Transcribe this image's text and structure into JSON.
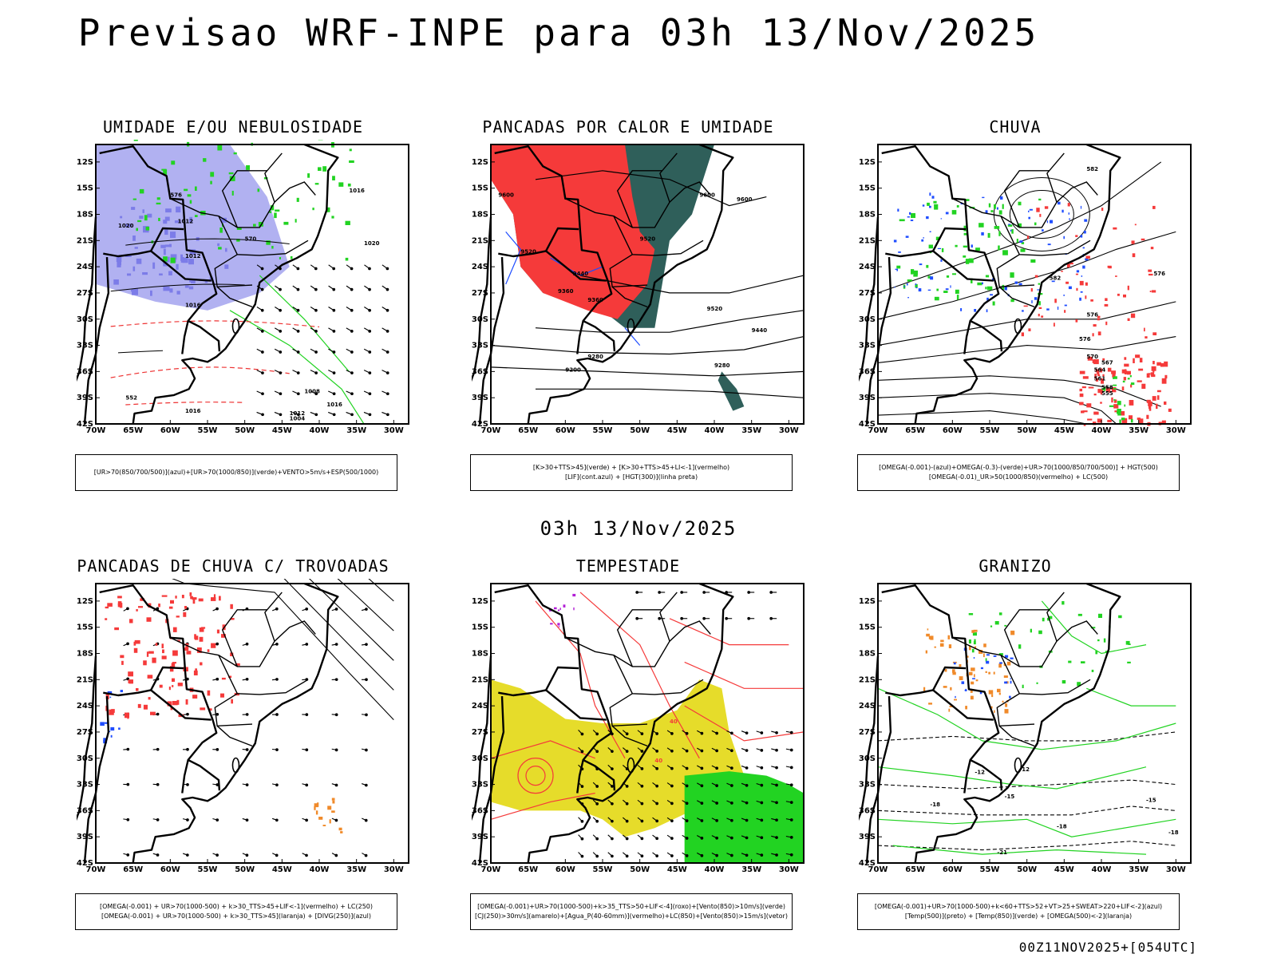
{
  "header": {
    "title": "Previsao WRF-INPE  para 03h 13/Nov/2025",
    "mid_time": "03h 13/Nov/2025",
    "run_stamp": "00Z11NOV2025+[054UTC]"
  },
  "axes": {
    "lat_ticks": [
      "12S",
      "15S",
      "18S",
      "21S",
      "24S",
      "27S",
      "30S",
      "33S",
      "36S",
      "39S",
      "42S"
    ],
    "lon_ticks": [
      "70W",
      "65W",
      "60W",
      "55W",
      "50W",
      "45W",
      "40W",
      "35W",
      "30W"
    ]
  },
  "colors": {
    "red": "#f53a3a",
    "green": "#22d322",
    "blue": "#1f4dff",
    "lavender": "#a8a8f0",
    "yellow": "#e6dc2a",
    "orange": "#f08a2a",
    "teal": "#2f5f5a",
    "purple": "#b21fd6"
  },
  "panels": [
    {
      "title": "UMIDADE E/OU NEBULOSIDADE",
      "legend": [
        "[UR>70(850/700/500)](azul)+[UR>70(1000/850)](verde)+VENTO>5m/s+ESP(500/1000)"
      ],
      "contour_labels": [
        "1012",
        "1016",
        "1020",
        "1012",
        "1016",
        "1020",
        "1016",
        "1012",
        "1008",
        "1004",
        "1016",
        "552",
        "570",
        "576"
      ]
    },
    {
      "title": "PANCADAS POR CALOR E UMIDADE",
      "legend": [
        "[K>30+TTS>45](verde) + [K>30+TTS>45+LI<-1](vermelho)",
        "[LIF](cont.azul) + [HGT(300)](linha preta)"
      ],
      "contour_labels": [
        "9600",
        "9600",
        "9600",
        "9520",
        "9520",
        "9440",
        "9360",
        "9360",
        "9280",
        "9280",
        "9200",
        "9520",
        "9440"
      ]
    },
    {
      "title": "CHUVA",
      "legend": [
        "[OMEGA(-0.001)-(azul)+OMEGA(-0.3)-(verde)+UR>70(1000/850/700/500)] + HGT(500)",
        "[OMEGA(-0.01)_UR>50(1000/850)(vermelho) + LC(500)"
      ],
      "contour_labels": [
        "582",
        "582",
        "576",
        "576",
        "576",
        "570",
        "567",
        "564",
        "561",
        "558",
        "555"
      ]
    },
    {
      "title": "PANCADAS DE CHUVA C/ TROVOADAS",
      "legend": [
        "[OMEGA(-0.001) + UR>70(1000-500) + k>30_TTS>45+LIF<-1](vermelho) + LC(250)",
        "[OMEGA(-0.001) + UR>70(1000-500) + k>30_TTS>45](laranja) + [DIVG(250)](azul)"
      ],
      "contour_labels": []
    },
    {
      "title": "TEMPESTADE",
      "legend": [
        "[OMEGA(-0.001)+UR>70(1000-500)+k>35_TTS>50+LIF<-4](roxo)+[Vento(850)>10m/s](verde)",
        "[CJ(250)>30m/s](amarelo)+[Agua_P(40-60mm)](vermelho)+LC(850)+[Vento(850)>15m/s](vetor)"
      ],
      "contour_labels": [
        "40",
        "40"
      ]
    },
    {
      "title": "GRANIZO",
      "legend": [
        "[OMEGA(-0.001)+UR>70(1000-500)+k<60+TTS>52+VT>25+SWEAT>220+LIF<-2](azul)",
        "[Temp(500)](preto) + [Temp(850)](verde) + [OMEGA(500)<-2](laranja)"
      ],
      "contour_labels": [
        "-12",
        "-12",
        "-15",
        "-15",
        "-18",
        "-18",
        "-18",
        "-21"
      ]
    }
  ]
}
